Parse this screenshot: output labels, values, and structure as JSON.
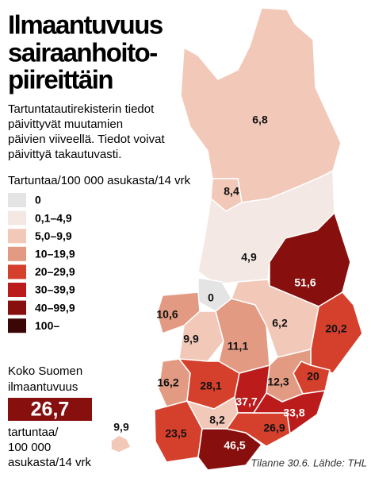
{
  "header": {
    "title_lines": [
      "Ilmaantuvuus",
      "sairaanhoito-",
      "piireittäin"
    ],
    "intro_lines": [
      "Tartuntatautirekisterin tiedot",
      "päivittyvät muutamien",
      "päivien viiveellä. Tiedot voivat",
      "päivittyä takautuvasti."
    ]
  },
  "legend": {
    "title": "Tartuntaa/100 000 asukasta/14 vrk",
    "items": [
      {
        "label": "0",
        "color": "#e4e4e4"
      },
      {
        "label": "0,1–4,9",
        "color": "#f4e8e4"
      },
      {
        "label": "5,0–9,9",
        "color": "#f2c8b9"
      },
      {
        "label": "10–19,9",
        "color": "#e29a82"
      },
      {
        "label": "20–29,9",
        "color": "#d5402c"
      },
      {
        "label": "30–39,9",
        "color": "#bb1b1b"
      },
      {
        "label": "40–99,9",
        "color": "#87100f"
      },
      {
        "label": "100–",
        "color": "#3a0606"
      }
    ]
  },
  "total": {
    "label_lines": [
      "Koko Suomen",
      "ilmaantuvuus"
    ],
    "value": "26,7",
    "unit_lines": [
      "tartuntaa/",
      "100 000",
      "asukasta/14 vrk"
    ]
  },
  "regions": [
    {
      "label": "6,8",
      "class": 2
    },
    {
      "label": "8,4",
      "class": 2
    },
    {
      "label": "4,9",
      "class": 1
    },
    {
      "label": "51,6",
      "class": 6
    },
    {
      "label": "0",
      "class": 0
    },
    {
      "label": "10,6",
      "class": 3
    },
    {
      "label": "9,9",
      "class": 2
    },
    {
      "label": "11,1",
      "class": 3
    },
    {
      "label": "6,2",
      "class": 2
    },
    {
      "label": "20,2",
      "class": 4
    },
    {
      "label": "20",
      "class": 4
    },
    {
      "label": "12,3",
      "class": 3
    },
    {
      "label": "16,2",
      "class": 3
    },
    {
      "label": "28,1",
      "class": 4
    },
    {
      "label": "37,7",
      "class": 5
    },
    {
      "label": "8,2",
      "class": 2
    },
    {
      "label": "23,5",
      "class": 4
    },
    {
      "label": "46,5",
      "class": 6
    },
    {
      "label": "26,9",
      "class": 4
    },
    {
      "label": "33,8",
      "class": 5
    },
    {
      "label": "9,9",
      "class": 2
    }
  ],
  "source": "Tilanne 30.6. Lähde: THL"
}
